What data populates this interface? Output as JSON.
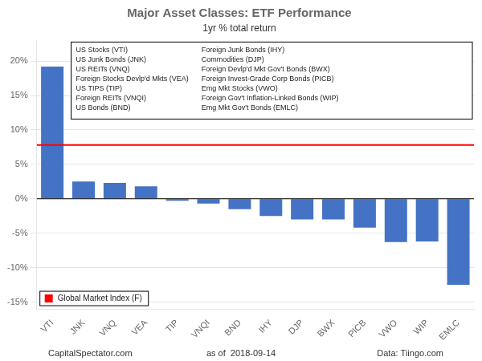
{
  "chart_data": {
    "type": "bar",
    "title": "Major Asset Classes: ETF Performance",
    "subtitle": "1yr % total return",
    "categories": [
      "VTI",
      "JNK",
      "VNQ",
      "VEA",
      "TIP",
      "VNQI",
      "BND",
      "IHY",
      "DJP",
      "BWX",
      "PICB",
      "VWO",
      "WIP",
      "EMLC"
    ],
    "values": [
      19.2,
      2.5,
      2.3,
      1.8,
      -0.3,
      -0.7,
      -1.5,
      -2.5,
      -3.0,
      -3.0,
      -4.2,
      -6.3,
      -6.2,
      -12.5
    ],
    "color": "#4472C4",
    "ylim": [
      -16,
      23
    ],
    "yticks": [
      {
        "value": -15,
        "label": "-15%"
      },
      {
        "value": -10,
        "label": "-10%"
      },
      {
        "value": -5,
        "label": "-5%"
      },
      {
        "value": 0,
        "label": "0%"
      },
      {
        "value": 5,
        "label": "5%"
      },
      {
        "value": 10,
        "label": "10%"
      },
      {
        "value": 15,
        "label": "15%"
      },
      {
        "value": 20,
        "label": "20%"
      }
    ],
    "grid": true,
    "hlines": [
      {
        "value": 7.8,
        "color": "#FF0000",
        "label": "Global Market Index (F)"
      }
    ],
    "annotations": [
      "US Stocks (VTI)",
      "US Junk Bonds (JNK)",
      "US REITs (VNQ)",
      "Foreign Stocks Devlp'd Mkts (VEA)",
      "US TIPS (TIP)",
      "Foreign REITs (VNQI)",
      "US Bonds (BND)",
      "Foreign Junk Bonds (IHY)",
      "Commodities (DJP)",
      "Foreign Devlp'd Mkt Gov't Bonds (BWX)",
      "Foreign Invest-Grade Corp Bonds (PICB)",
      "Emg Mkt Stocks (VWO)",
      "Foreign Gov't Inflation-Linked Bonds (WIP)",
      "Emg Mkt Gov't Bonds (EMLC)"
    ],
    "footer": [
      "CapitalSpectator.com",
      "as of  2018-09-14",
      "Data: Tiingo.com"
    ]
  }
}
